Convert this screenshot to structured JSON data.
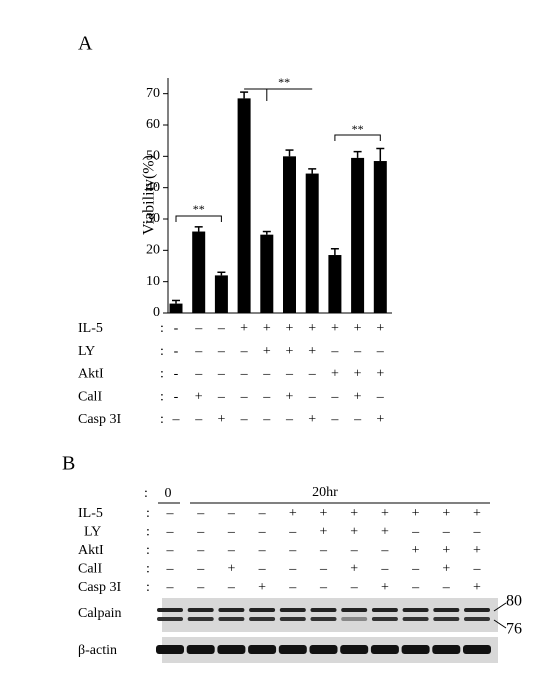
{
  "chart_data": {
    "type": "bar",
    "panel": "A",
    "ylabel": "Viability(%)",
    "values": [
      3,
      26,
      12,
      68.5,
      25,
      50,
      44.5,
      18.5,
      49.5,
      48.5
    ],
    "errors": [
      1,
      1.5,
      1,
      2,
      1,
      2,
      1.5,
      2,
      2,
      4
    ],
    "color": "#000000",
    "ylim": [
      0,
      75
    ],
    "yticks": [
      0,
      10,
      20,
      30,
      40,
      50,
      60,
      70
    ],
    "annotations": [
      "**",
      "**",
      "**"
    ],
    "treatments": [
      {
        "name": "IL-5",
        "signs": [
          "-",
          "–",
          "–",
          "+",
          "+",
          "+",
          "+",
          "+",
          "+",
          "+"
        ]
      },
      {
        "name": "LY",
        "signs": [
          "-",
          "–",
          "–",
          "–",
          "+",
          "+",
          "+",
          "–",
          "–",
          "–"
        ]
      },
      {
        "name": "AktI",
        "signs": [
          "-",
          "–",
          "–",
          "–",
          "–",
          "–",
          "–",
          "+",
          "+",
          "+"
        ]
      },
      {
        "name": "CalI",
        "signs": [
          "-",
          "+",
          "–",
          "–",
          "–",
          "+",
          "–",
          "–",
          "+",
          "–"
        ]
      },
      {
        "name": "Casp 3I",
        "signs": [
          "–",
          "–",
          "+",
          "–",
          "–",
          "–",
          "+",
          "–",
          "–",
          "+"
        ]
      }
    ]
  },
  "blot": {
    "panel": "B",
    "time0": "0",
    "time20": "20hr",
    "treatments": [
      {
        "name": "IL-5",
        "signs": [
          "–",
          "–",
          "–",
          "–",
          "+",
          "+",
          "+",
          "+",
          "+",
          "+",
          "+"
        ]
      },
      {
        "name": "LY",
        "signs": [
          "–",
          "–",
          "–",
          "–",
          "–",
          "+",
          "+",
          "+",
          "–",
          "–",
          "–"
        ]
      },
      {
        "name": "AktI",
        "signs": [
          "–",
          "–",
          "–",
          "–",
          "–",
          "–",
          "–",
          "–",
          "+",
          "+",
          "+"
        ]
      },
      {
        "name": "CalI",
        "signs": [
          "–",
          "–",
          "+",
          "–",
          "–",
          "–",
          "+",
          "–",
          "–",
          "+",
          "–"
        ]
      },
      {
        "name": "Casp 3I",
        "signs": [
          "–",
          "–",
          "–",
          "+",
          "–",
          "–",
          "–",
          "+",
          "–",
          "–",
          "+"
        ]
      }
    ],
    "rows": [
      "Calpain",
      "β-actin"
    ],
    "markers": [
      "80",
      "76"
    ]
  }
}
